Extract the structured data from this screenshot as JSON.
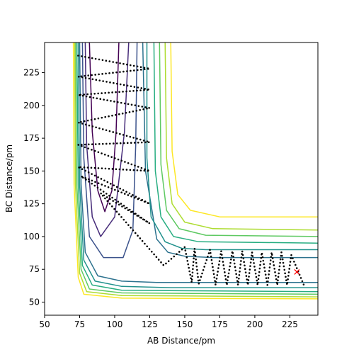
{
  "chart_data": {
    "type": "contour",
    "xlabel": "AB Distance/pm",
    "ylabel": "BC Distance/pm",
    "xlim": [
      50,
      245
    ],
    "ylim": [
      40,
      248
    ],
    "xticks": [
      50,
      75,
      100,
      125,
      150,
      175,
      200,
      225
    ],
    "yticks": [
      50,
      75,
      100,
      125,
      150,
      175,
      200,
      225
    ],
    "contours": [
      {
        "color": "#440154",
        "x": [
          82,
          84,
          88,
          93,
          98,
          101,
          103
        ],
        "y": [
          248,
          180,
          135,
          119,
          135,
          180,
          248
        ]
      },
      {
        "color": "#472c7a",
        "x": [
          79,
          80,
          84,
          90,
          100,
          107,
          110
        ],
        "y": [
          248,
          170,
          115,
          100,
          115,
          180,
          248
        ]
      },
      {
        "color": "#3b528b",
        "x": [
          77,
          78,
          82,
          92,
          106,
          113,
          115,
          116
        ],
        "y": [
          248,
          160,
          100,
          84,
          84,
          105,
          170,
          248
        ]
      },
      {
        "color": "#2c728e",
        "x": [
          75,
          76,
          79,
          88,
          105,
          130,
          160,
          245,
          null,
          245,
          170,
          150,
          138,
          130,
          122,
          120
        ],
        "y": [
          248,
          140,
          88,
          70,
          66,
          65,
          65,
          65,
          null,
          84,
          84,
          85,
          88,
          98,
          150,
          248
        ]
      },
      {
        "color": "#21918c",
        "x": [
          74,
          75,
          78,
          86,
          105,
          140,
          245,
          null,
          245,
          165,
          148,
          136,
          126,
          123,
          123
        ],
        "y": [
          248,
          140,
          82,
          66,
          62,
          61,
          61,
          null,
          90,
          90,
          91,
          96,
          115,
          160,
          248
        ]
      },
      {
        "color": "#27ad81",
        "x": [
          73,
          74,
          77,
          84,
          105,
          245,
          null,
          245,
          160,
          142,
          133,
          129,
          128
        ],
        "y": [
          248,
          140,
          78,
          63,
          59,
          58,
          null,
          95,
          96,
          100,
          115,
          150,
          248
        ]
      },
      {
        "color": "#5ec962",
        "x": [
          72,
          73,
          76,
          82,
          105,
          245,
          null,
          245,
          165,
          146,
          137,
          133,
          132
        ],
        "y": [
          248,
          140,
          75,
          60,
          57,
          56,
          null,
          100,
          101,
          106,
          120,
          155,
          248
        ]
      },
      {
        "color": "#addc30",
        "x": [
          71.5,
          72,
          75,
          80,
          105,
          245,
          null,
          245,
          170,
          150,
          141,
          137,
          136
        ],
        "y": [
          248,
          140,
          72,
          58,
          55,
          54,
          null,
          105,
          106,
          111,
          125,
          160,
          248
        ]
      },
      {
        "color": "#fde725",
        "x": [
          70.5,
          71,
          74,
          78,
          105,
          245,
          null,
          245,
          175,
          154,
          145,
          141,
          140
        ],
        "y": [
          248,
          140,
          69,
          56,
          53,
          52.5,
          null,
          115,
          115,
          120,
          132,
          165,
          248
        ]
      }
    ],
    "trajectory": {
      "color": "#000000",
      "x": [
        74,
        125,
        74,
        125,
        74,
        125,
        74,
        125,
        74,
        125,
        74,
        125,
        76,
        125,
        90,
        135,
        150,
        155,
        157,
        160,
        168,
        172,
        176,
        180,
        184,
        188,
        191,
        195,
        198,
        202,
        205,
        209,
        212,
        216,
        219,
        223,
        226,
        235
      ],
      "y": [
        238,
        228,
        222,
        212,
        208,
        198,
        187,
        172,
        170,
        150,
        153,
        125,
        146,
        110,
        133,
        78,
        92,
        65,
        91,
        64,
        90,
        63,
        89,
        63,
        89,
        63,
        89,
        63,
        88,
        63,
        88,
        63,
        88,
        63,
        88,
        63,
        86,
        63
      ]
    },
    "end_marker": {
      "color": "#ff0000",
      "x": 230,
      "y": 73
    }
  }
}
